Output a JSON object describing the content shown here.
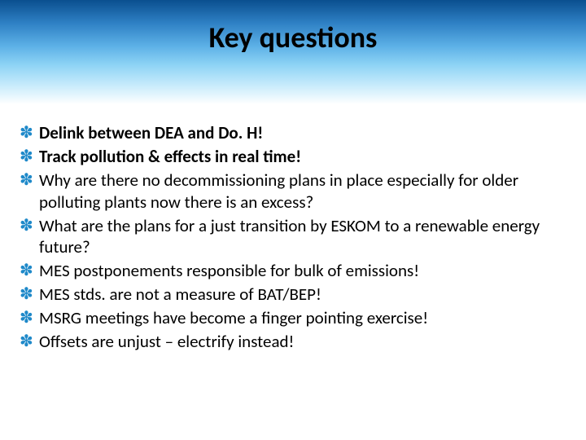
{
  "slide": {
    "title": "Key questions",
    "title_color": "#000000",
    "title_fontsize": 36,
    "title_fontweight": 700,
    "header_gradient": [
      "#0a4f8f",
      "#2e80c4",
      "#5cb0e6",
      "#8dd3f5",
      "#c2e9fb",
      "#ffffff"
    ],
    "bullet_color": "#1f89c9",
    "bullet_glyph": "✽",
    "body_fontsize": 21,
    "body_color": "#000000",
    "background_color": "#ffffff",
    "items": [
      {
        "text": "Delink between DEA and Do. H!",
        "bold": true
      },
      {
        "text": "Track pollution & effects in real time!",
        "bold": true
      },
      {
        "text": "Why are there no decommissioning plans in place especially for older polluting plants now there is an excess?",
        "bold": false
      },
      {
        "text": "What are the plans for a just transition by ESKOM to a renewable energy future?",
        "bold": false
      },
      {
        "text": "MES postponements responsible for bulk of emissions!",
        "bold": false
      },
      {
        "text": "MES stds. are not a measure of BAT/BEP!",
        "bold": false
      },
      {
        "text": "MSRG meetings have become a finger pointing exercise!",
        "bold": false
      },
      {
        "text": "Offsets are unjust – electrify instead!",
        "bold": false
      }
    ]
  }
}
